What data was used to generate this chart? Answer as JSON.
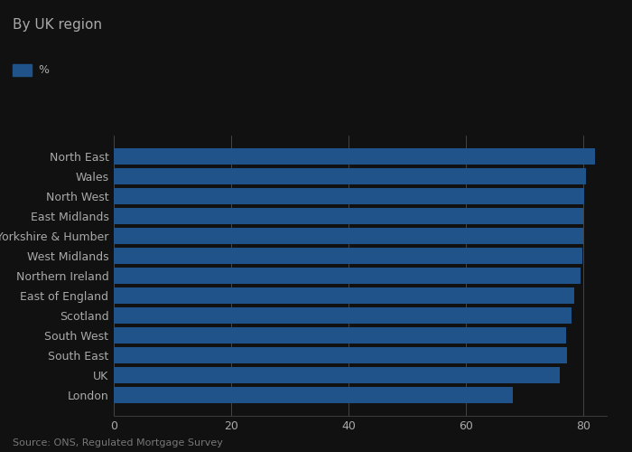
{
  "title": "By UK region",
  "legend_label": "%",
  "source": "Source: ONS, Regulated Mortgage Survey",
  "bar_color": "#1f538a",
  "categories": [
    "North East",
    "Wales",
    "North West",
    "East Midlands",
    "Yorkshire & Humber",
    "West Midlands",
    "Northern Ireland",
    "East of England",
    "Scotland",
    "South West",
    "South East",
    "UK",
    "London"
  ],
  "values": [
    82.0,
    80.5,
    80.2,
    80.0,
    80.0,
    79.8,
    79.5,
    78.5,
    78.0,
    77.0,
    77.2,
    76.0,
    68.0
  ],
  "xlim": [
    0,
    84
  ],
  "xticks": [
    0,
    20,
    40,
    60,
    80
  ],
  "background_color": "#111111",
  "plot_bg_color": "#111111",
  "title_color": "#aaaaaa",
  "label_color": "#aaaaaa",
  "tick_color": "#aaaaaa",
  "source_color": "#777777",
  "grid_color": "#333333",
  "spine_color": "#444444",
  "title_fontsize": 11,
  "label_fontsize": 9,
  "tick_fontsize": 9,
  "source_fontsize": 8
}
